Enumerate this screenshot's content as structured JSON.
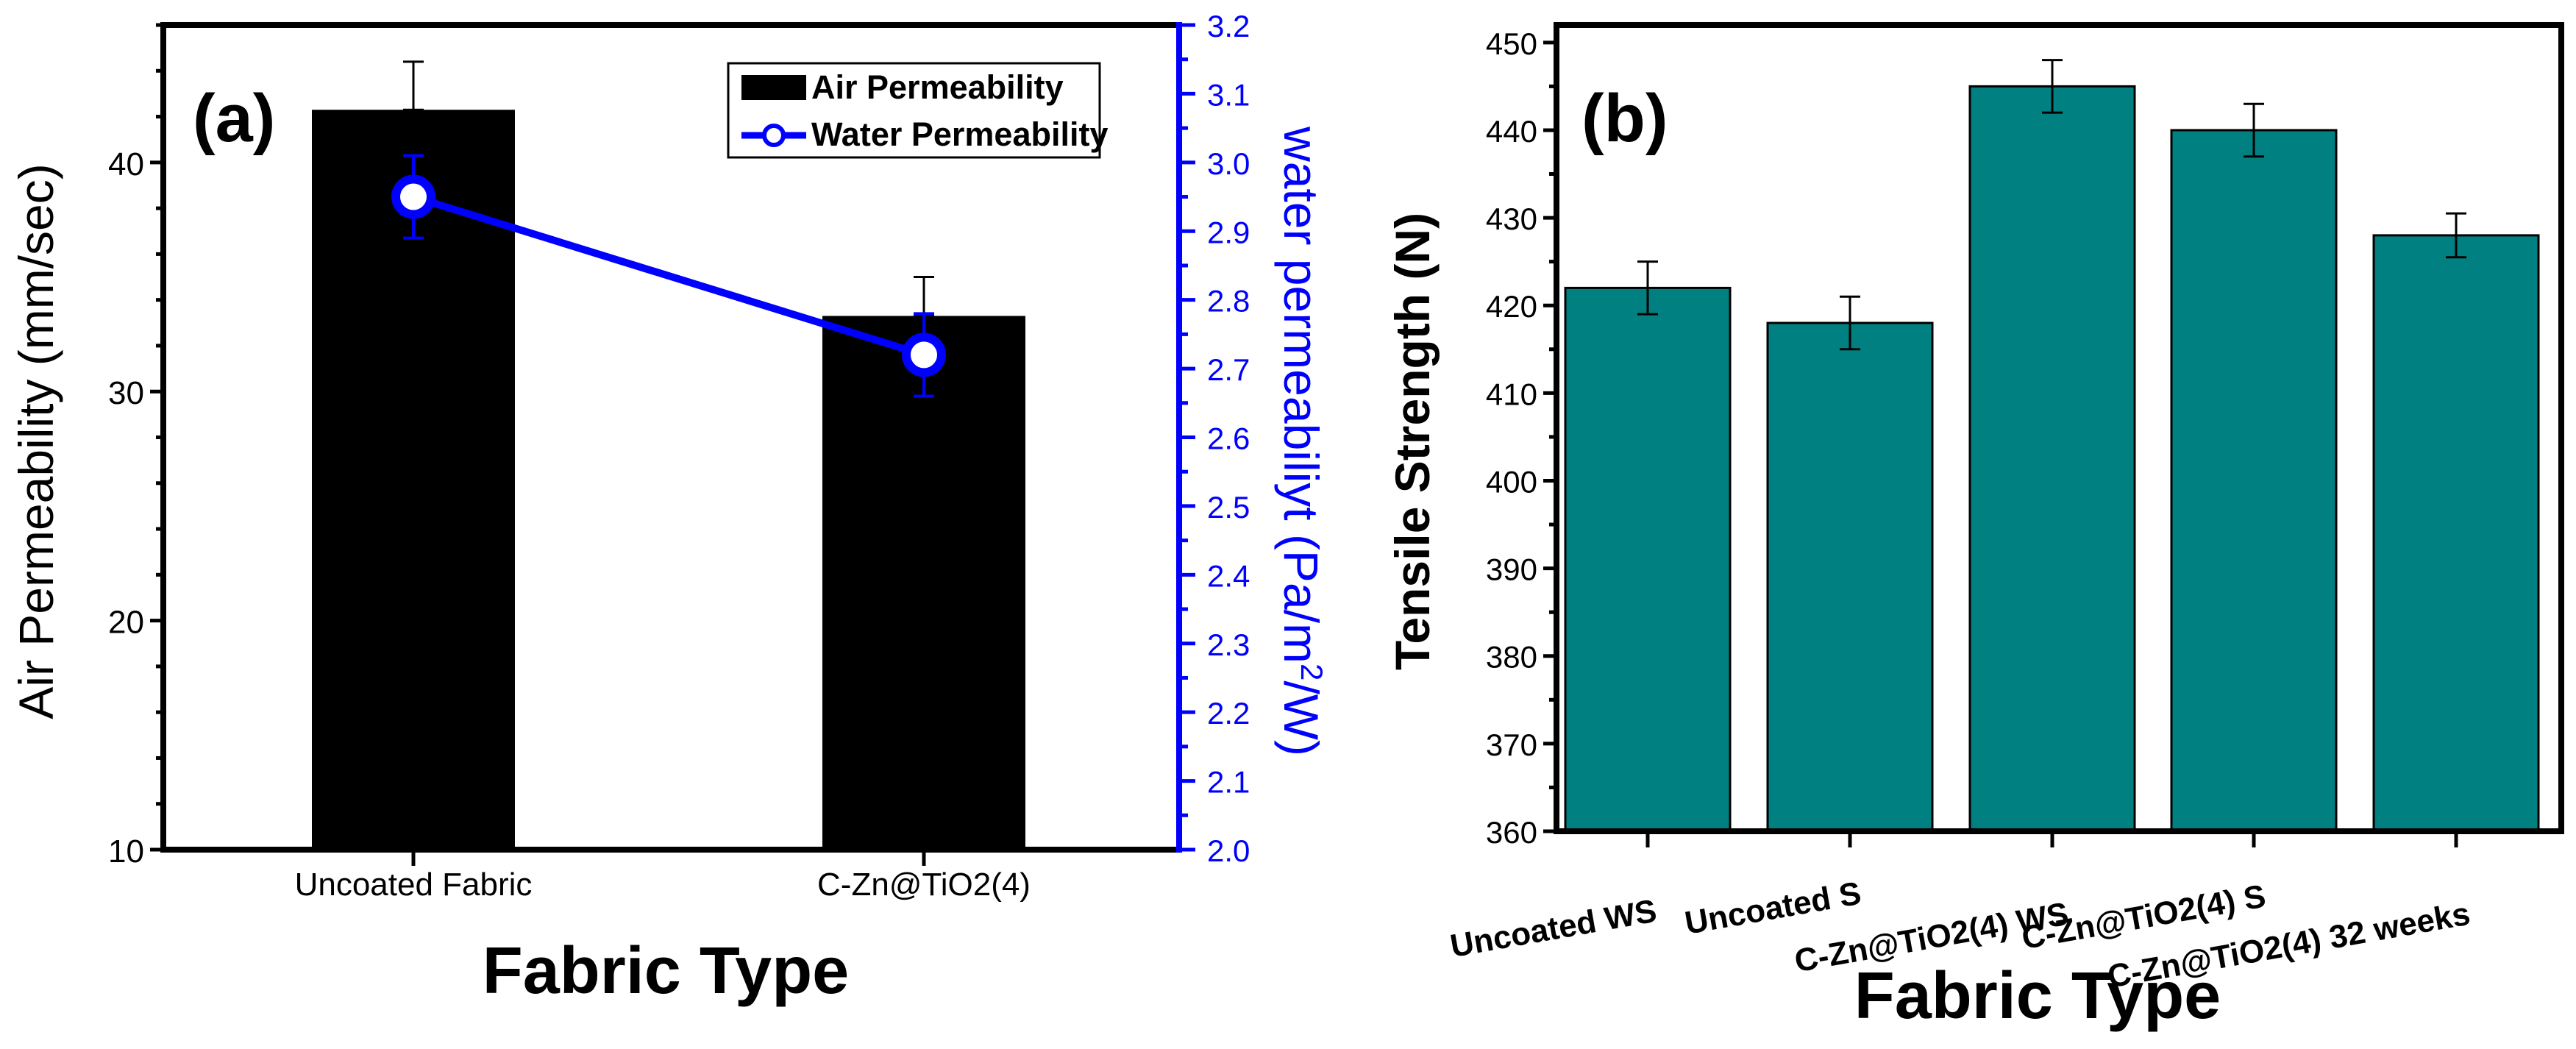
{
  "chart_data": [
    {
      "panel_label": "(a)",
      "type": "bar",
      "categories": [
        "Uncoated Fabric",
        "C-Zn@TiO2(4)"
      ],
      "xlabel": "Fabric Type",
      "ylabel": "Air Permeability (mm/sec)",
      "ylim": [
        10,
        46
      ],
      "yticks": [
        "10",
        "20",
        "30",
        "40"
      ],
      "y2label_prefix": "water permeabiliyt (Pa/m",
      "y2label_sup": "2",
      "y2label_suffix": "/W)",
      "y2lim": [
        2.0,
        3.2
      ],
      "y2ticks": [
        "2.0",
        "2.1",
        "2.2",
        "2.3",
        "2.4",
        "2.5",
        "2.6",
        "2.7",
        "2.8",
        "2.9",
        "3.0",
        "3.1",
        "3.2"
      ],
      "legend_position": "top-right",
      "series": [
        {
          "name": "Air Permeability",
          "kind": "bar",
          "axis": "left",
          "values": [
            42.3,
            33.3
          ],
          "errors": [
            2.1,
            1.7
          ],
          "color": "#000000"
        },
        {
          "name": "Water Permeability",
          "kind": "line",
          "axis": "right",
          "values": [
            2.95,
            2.72
          ],
          "errors": [
            0.06,
            0.06
          ],
          "color": "#0000ff"
        }
      ]
    },
    {
      "panel_label": "(b)",
      "type": "bar",
      "categories": [
        "Uncoated WS",
        "Uncoated S",
        "C-Zn@TiO2(4) WS",
        "C-Zn@TiO2(4) S",
        "C-Zn@TiO2(4) 32 weeks"
      ],
      "xlabel": "Fabric Type",
      "ylabel": "Tensile Strength (N)",
      "ylim": [
        360,
        452
      ],
      "yticks": [
        "360",
        "370",
        "380",
        "390",
        "400",
        "410",
        "420",
        "430",
        "440",
        "450"
      ],
      "series": [
        {
          "name": "Tensile Strength",
          "values": [
            422,
            418,
            445,
            440,
            428
          ],
          "errors": [
            3,
            3,
            3,
            3,
            2.5
          ],
          "color": "#008080"
        }
      ]
    }
  ]
}
